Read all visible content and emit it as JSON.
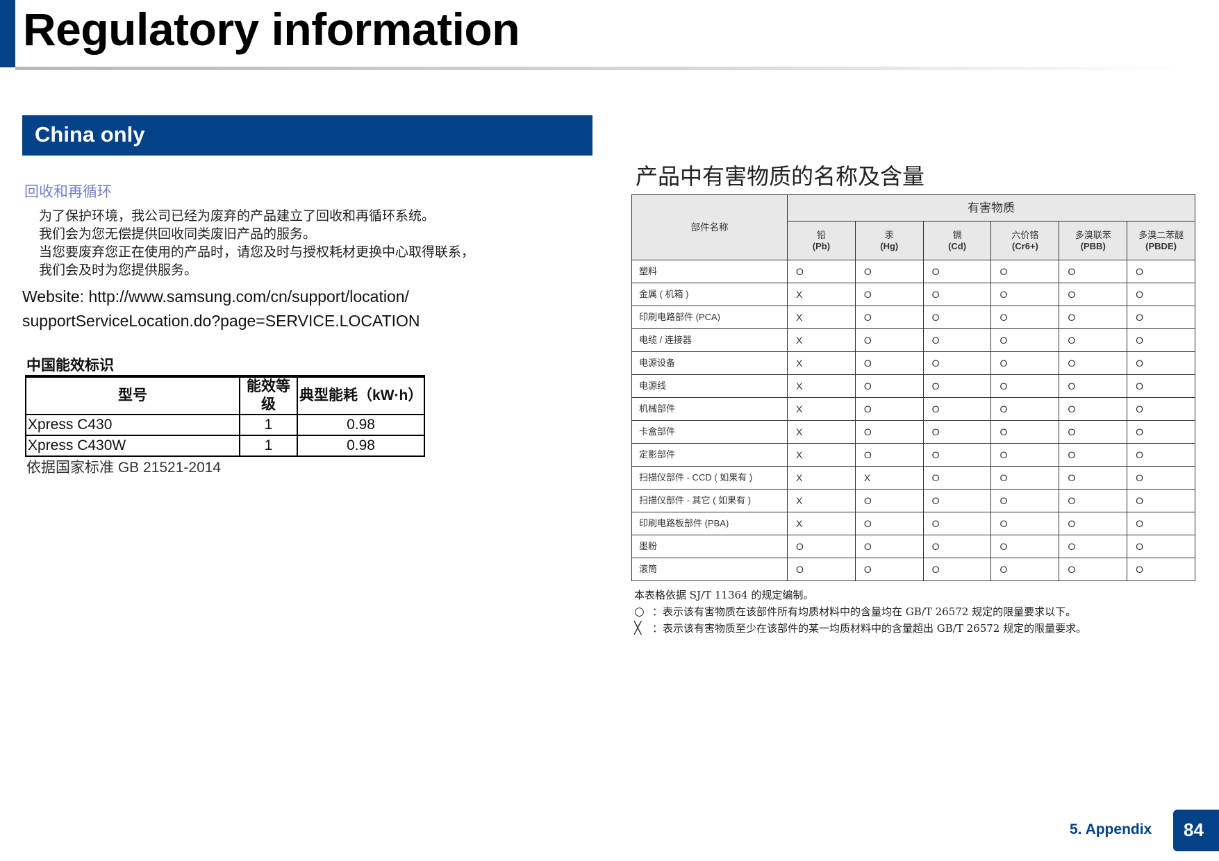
{
  "header": {
    "title": "Regulatory information"
  },
  "section": {
    "title": "China only"
  },
  "recycling": {
    "heading": "回收和再循环",
    "lines": [
      "为了保护环境，我公司已经为废弃的产品建立了回收和再循环系统。",
      "我们会为您无偿提供回收同类废旧产品的服务。",
      "当您要废弃您正在使用的产品时，请您及时与授权耗材更换中心取得联系，",
      "我们会及时为您提供服务。"
    ],
    "website_line1": "Website: http://www.samsung.com/cn/support/location/",
    "website_line2": "supportServiceLocation.do?page=SERVICE.LOCATION"
  },
  "energy_label": {
    "heading": "中国能效标识",
    "columns": [
      "型号",
      "能效等级",
      "典型能耗（kW·h）"
    ],
    "rows": [
      [
        "Xpress C430",
        "1",
        "0.98"
      ],
      [
        "Xpress C430W",
        "1",
        "0.98"
      ]
    ],
    "footnote": "依据国家标准 GB 21521-2014"
  },
  "hazard_table": {
    "title": "产品中有害物质的名称及含量",
    "part_header": "部件名称",
    "group_header": "有害物质",
    "substances": [
      {
        "cn": "铅",
        "sym": "(Pb)"
      },
      {
        "cn": "汞",
        "sym": "(Hg)"
      },
      {
        "cn": "镉",
        "sym": "(Cd)"
      },
      {
        "cn": "六价铬",
        "sym": "(Cr6+)"
      },
      {
        "cn": "多溴联苯",
        "sym": "(PBB)"
      },
      {
        "cn": "多溴二苯醚",
        "sym": "(PBDE)"
      }
    ],
    "rows": [
      {
        "part": "塑料",
        "values": [
          "O",
          "O",
          "O",
          "O",
          "O",
          "O"
        ]
      },
      {
        "part": "金属 ( 机箱 )",
        "values": [
          "X",
          "O",
          "O",
          "O",
          "O",
          "O"
        ]
      },
      {
        "part": "印刷电路部件 (PCA)",
        "values": [
          "X",
          "O",
          "O",
          "O",
          "O",
          "O"
        ]
      },
      {
        "part": "电缆 / 连接器",
        "values": [
          "X",
          "O",
          "O",
          "O",
          "O",
          "O"
        ]
      },
      {
        "part": "电源设备",
        "values": [
          "X",
          "O",
          "O",
          "O",
          "O",
          "O"
        ]
      },
      {
        "part": "电源线",
        "values": [
          "X",
          "O",
          "O",
          "O",
          "O",
          "O"
        ]
      },
      {
        "part": "机械部件",
        "values": [
          "X",
          "O",
          "O",
          "O",
          "O",
          "O"
        ]
      },
      {
        "part": "卡盒部件",
        "values": [
          "X",
          "O",
          "O",
          "O",
          "O",
          "O"
        ]
      },
      {
        "part": "定影部件",
        "values": [
          "X",
          "O",
          "O",
          "O",
          "O",
          "O"
        ]
      },
      {
        "part": "扫描仪部件 - CCD ( 如果有 )",
        "values": [
          "X",
          "X",
          "O",
          "O",
          "O",
          "O"
        ]
      },
      {
        "part": "扫描仪部件 - 其它 ( 如果有 )",
        "values": [
          "X",
          "O",
          "O",
          "O",
          "O",
          "O"
        ]
      },
      {
        "part": "印刷电路板部件 (PBA)",
        "values": [
          "X",
          "O",
          "O",
          "O",
          "O",
          "O"
        ]
      },
      {
        "part": "墨粉",
        "values": [
          "O",
          "O",
          "O",
          "O",
          "O",
          "O"
        ]
      },
      {
        "part": "滚筒",
        "values": [
          "O",
          "O",
          "O",
          "O",
          "O",
          "O"
        ]
      }
    ],
    "notes": {
      "basis": "本表格依据 SJ/T 11364 的规定编制。",
      "circle_symbol": "○",
      "circle_text": "：表示该有害物质在该部件所有均质材料中的含量均在 GB/T 26572 规定的限量要求以下。",
      "cross_symbol": "╳",
      "cross_text": "：表示该有害物质至少在该部件的某一均质材料中的含量超出 GB/T 26572 规定的限量要求。"
    }
  },
  "footer": {
    "section": "5.  Appendix",
    "page": "84"
  },
  "colors": {
    "brand_blue": "#034289",
    "heading_lavender": "#7a80c8"
  }
}
